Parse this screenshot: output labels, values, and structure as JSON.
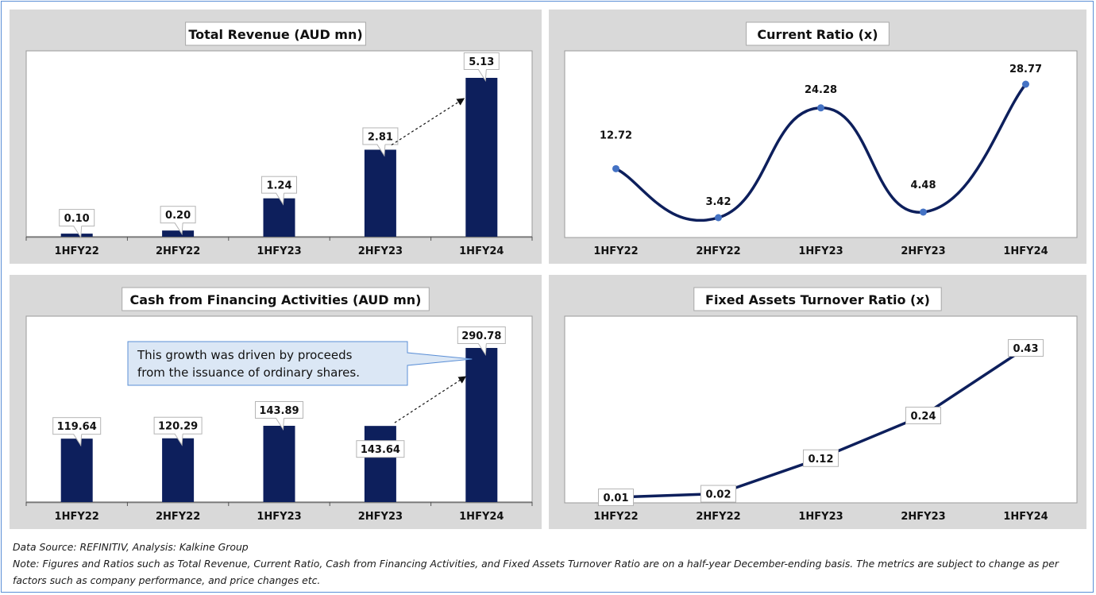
{
  "chart_data": [
    {
      "type": "bar",
      "title": "Total Revenue (AUD mn)",
      "categories": [
        "1HFY22",
        "2HFY22",
        "1HFY23",
        "2HFY23",
        "1HFY24"
      ],
      "values": [
        0.1,
        0.2,
        1.24,
        2.81,
        5.13
      ],
      "value_labels": [
        "0.10",
        "0.20",
        "1.24",
        "2.81",
        "5.13"
      ],
      "ylim": [
        0,
        5.13
      ],
      "color": "#0d1f5c",
      "annotation_arrow": {
        "from": "2HFY23",
        "to": "1HFY24"
      }
    },
    {
      "type": "line",
      "title": "Current Ratio (x)",
      "categories": [
        "1HFY22",
        "2HFY22",
        "1HFY23",
        "2HFY23",
        "1HFY24"
      ],
      "values": [
        12.72,
        3.42,
        24.28,
        4.48,
        28.77
      ],
      "value_labels": [
        "12.72",
        "3.42",
        "24.28",
        "4.48",
        "28.77"
      ],
      "smooth": true,
      "color": "#0d1f5c",
      "marker_color": "#4472c4"
    },
    {
      "type": "bar",
      "title": "Cash from Financing Activities (AUD mn)",
      "categories": [
        "1HFY22",
        "2HFY22",
        "1HFY23",
        "2HFY23",
        "1HFY24"
      ],
      "values": [
        119.64,
        120.29,
        143.89,
        143.64,
        290.78
      ],
      "value_labels": [
        "119.64",
        "120.29",
        "143.89",
        "143.64",
        "290.78"
      ],
      "ylim": [
        0,
        290.78
      ],
      "color": "#0d1f5c",
      "annotation_arrow": {
        "from": "2HFY23",
        "to": "1HFY24"
      },
      "callout": "This growth was driven by proceeds from the issuance of ordinary shares.",
      "callout_lines": [
        "This growth was driven by proceeds",
        "from the issuance of ordinary shares."
      ]
    },
    {
      "type": "line",
      "title": "Fixed Assets Turnover Ratio (x)",
      "categories": [
        "1HFY22",
        "2HFY22",
        "1HFY23",
        "2HFY23",
        "1HFY24"
      ],
      "values": [
        0.01,
        0.02,
        0.12,
        0.24,
        0.43
      ],
      "value_labels": [
        "0.01",
        "0.02",
        "0.12",
        "0.24",
        "0.43"
      ],
      "smooth": false,
      "color": "#0d1f5c"
    }
  ],
  "footer": {
    "source": "Data Source: REFINITIV, Analysis: Kalkine Group",
    "note": "Note: Figures and Ratios such as Total Revenue, Current Ratio, Cash from Financing Activities, and Fixed Assets Turnover Ratio are on a half-year December-ending basis. The metrics are subject to change as per factors such as company performance, and price changes etc."
  }
}
